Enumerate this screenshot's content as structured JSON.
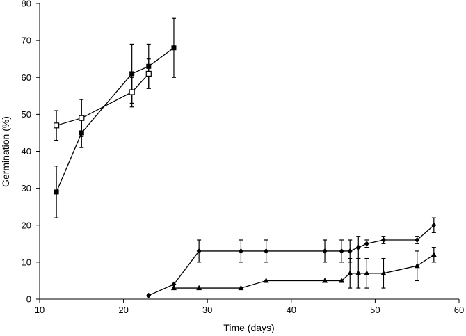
{
  "chart_data": {
    "type": "line",
    "title": "",
    "xlabel": "Time (days)",
    "ylabel": "Germination (%)",
    "xlim": [
      10,
      60
    ],
    "ylim": [
      0,
      80
    ],
    "x_ticks": [
      "10",
      "20",
      "30",
      "40",
      "50",
      "60"
    ],
    "y_ticks": [
      "0",
      "10",
      "20",
      "30",
      "40",
      "50",
      "60",
      "70",
      "80"
    ],
    "grid": false,
    "legend": "none",
    "series": [
      {
        "marker": "filled-square",
        "color": "#000000",
        "x": [
          12,
          15,
          21,
          23,
          26
        ],
        "y": [
          29,
          45,
          61,
          63,
          68
        ],
        "err": [
          7,
          4,
          8,
          6,
          8
        ]
      },
      {
        "marker": "open-square",
        "color": "#000000",
        "x": [
          12,
          15,
          21,
          23
        ],
        "y": [
          47,
          49,
          56,
          61
        ],
        "err": [
          4,
          5,
          4,
          4
        ]
      },
      {
        "marker": "filled-diamond",
        "color": "#000000",
        "x": [
          23,
          26,
          29,
          34,
          37,
          44,
          46,
          47,
          48,
          49,
          51,
          55,
          57
        ],
        "y": [
          1,
          4,
          13,
          13,
          13,
          13,
          13,
          13,
          14,
          15,
          16,
          16,
          20
        ],
        "err": [
          0,
          0,
          3,
          3,
          3,
          3,
          3,
          3,
          3,
          1,
          1,
          1,
          2
        ]
      },
      {
        "marker": "filled-triangle",
        "color": "#000000",
        "x": [
          26,
          29,
          34,
          37,
          44,
          46,
          47,
          48,
          49,
          51,
          55,
          57
        ],
        "y": [
          3,
          3,
          3,
          5,
          5,
          5,
          7,
          7,
          7,
          7,
          9,
          12
        ],
        "err": [
          0,
          0,
          0,
          0,
          0,
          0,
          4,
          4,
          4,
          4,
          4,
          2
        ]
      }
    ]
  }
}
